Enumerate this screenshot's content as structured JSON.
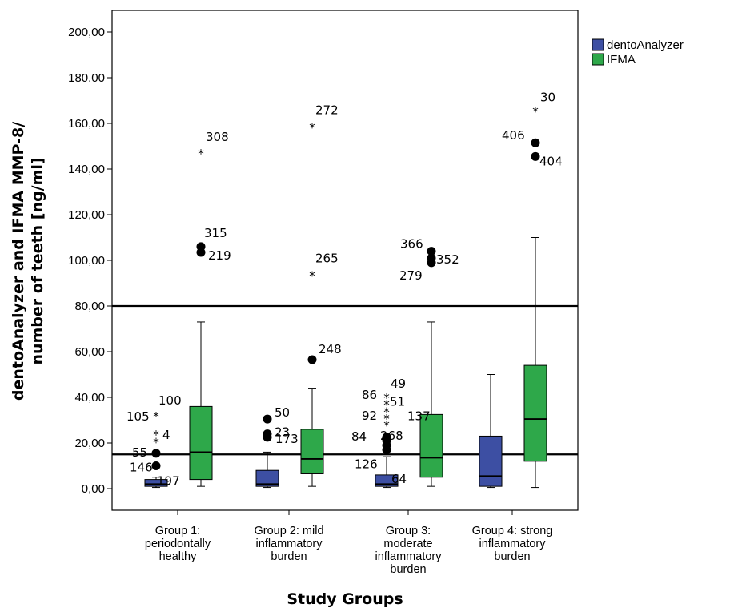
{
  "chart_data": {
    "type": "boxplot",
    "title": "",
    "xlabel": "Study Groups",
    "ylabel": "dentoAnalyzer and IFMA MMP-8/ number of teeth [ng/ml]",
    "ylim": [
      -10,
      210
    ],
    "yticks": [
      "0,00",
      "20,00",
      "40,00",
      "60,00",
      "80,00",
      "100,00",
      "120,00",
      "140,00",
      "160,00",
      "180,00",
      "200,00"
    ],
    "reference_lines": [
      15,
      80
    ],
    "grid": false,
    "legend_position": "top-right",
    "categories": [
      [
        "Group 1:",
        "periodontally",
        "healthy"
      ],
      [
        "Group 2: mild",
        "inflammatory",
        "burden"
      ],
      [
        "Group 3:",
        "moderate",
        "inflammatory",
        "burden"
      ],
      [
        "Group 4: strong",
        "inflammatory",
        "burden"
      ]
    ],
    "series": [
      {
        "name": "dentoAnalyzer",
        "color": "#3d4fa3",
        "boxes": [
          {
            "min": 0.5,
            "q1": 1,
            "median": 2,
            "q3": 4,
            "max": 5
          },
          {
            "min": 0.5,
            "q1": 1,
            "median": 2,
            "q3": 8,
            "max": 16
          },
          {
            "min": 0.5,
            "q1": 1,
            "median": 2,
            "q3": 6,
            "max": 14
          },
          {
            "min": 0.5,
            "q1": 1,
            "median": 5.5,
            "q3": 23,
            "max": 50
          }
        ],
        "outliers": [
          {
            "group": 0,
            "y": 10,
            "shape": "circle",
            "label": "146"
          },
          {
            "group": 0,
            "y": 15.5,
            "shape": "circle",
            "label": "55"
          },
          {
            "group": 0,
            "y": 21.5,
            "shape": "star",
            "label": ""
          },
          {
            "group": 0,
            "y": 25,
            "shape": "star",
            "label": "4"
          },
          {
            "group": 0,
            "y": 33,
            "shape": "star",
            "label": "105"
          },
          {
            "group": 0,
            "y": 33,
            "shape": "none",
            "label": "100"
          },
          {
            "group": 0,
            "y": 4,
            "shape": "none",
            "label": "197"
          },
          {
            "group": 1,
            "y": 22.5,
            "shape": "circle",
            "label": "173"
          },
          {
            "group": 1,
            "y": 24,
            "shape": "circle",
            "label": "23"
          },
          {
            "group": 1,
            "y": 30.5,
            "shape": "circle",
            "label": "50"
          },
          {
            "group": 2,
            "y": 17,
            "shape": "circle",
            "label": "126"
          },
          {
            "group": 2,
            "y": 19,
            "shape": "circle",
            "label": ""
          },
          {
            "group": 2,
            "y": 21,
            "shape": "circle",
            "label": "84"
          },
          {
            "group": 2,
            "y": 22.5,
            "shape": "circle",
            "label": "268"
          },
          {
            "group": 2,
            "y": 29,
            "shape": "star",
            "label": ""
          },
          {
            "group": 2,
            "y": 32,
            "shape": "star",
            "label": "92"
          },
          {
            "group": 2,
            "y": 35,
            "shape": "star",
            "label": ""
          },
          {
            "group": 2,
            "y": 38,
            "shape": "star",
            "label": "51"
          },
          {
            "group": 2,
            "y": 41,
            "shape": "star",
            "label": "86"
          },
          {
            "group": 2,
            "y": 41,
            "shape": "none",
            "label": "49"
          },
          {
            "group": 2,
            "y": 12,
            "shape": "none",
            "label": "64"
          }
        ]
      },
      {
        "name": "IFMA",
        "color": "#2ea84a",
        "boxes": [
          {
            "min": 1,
            "q1": 4,
            "median": 16,
            "q3": 36,
            "max": 73
          },
          {
            "min": 1,
            "q1": 6.5,
            "median": 13,
            "q3": 26,
            "max": 44
          },
          {
            "min": 1,
            "q1": 5,
            "median": 13.5,
            "q3": 32.5,
            "max": 73
          },
          {
            "min": 0.5,
            "q1": 12,
            "median": 30.5,
            "q3": 54,
            "max": 110
          }
        ],
        "outliers": [
          {
            "group": 0,
            "y": 103.5,
            "shape": "circle",
            "label": "219"
          },
          {
            "group": 0,
            "y": 106,
            "shape": "circle",
            "label": "315"
          },
          {
            "group": 0,
            "y": 148,
            "shape": "star",
            "label": "308"
          },
          {
            "group": 1,
            "y": 56.5,
            "shape": "circle",
            "label": "248"
          },
          {
            "group": 1,
            "y": 94.5,
            "shape": "star",
            "label": "265"
          },
          {
            "group": 1,
            "y": 159.5,
            "shape": "star",
            "label": "272"
          },
          {
            "group": 2,
            "y": 32.5,
            "shape": "none",
            "label": "137"
          },
          {
            "group": 2,
            "y": 99,
            "shape": "circle",
            "label": "279"
          },
          {
            "group": 2,
            "y": 101,
            "shape": "circle",
            "label": "352"
          },
          {
            "group": 2,
            "y": 104,
            "shape": "circle",
            "label": "366"
          },
          {
            "group": 3,
            "y": 145.5,
            "shape": "circle",
            "label": "404"
          },
          {
            "group": 3,
            "y": 151.5,
            "shape": "circle",
            "label": "406"
          },
          {
            "group": 3,
            "y": 166.5,
            "shape": "star",
            "label": "30"
          }
        ]
      }
    ]
  }
}
